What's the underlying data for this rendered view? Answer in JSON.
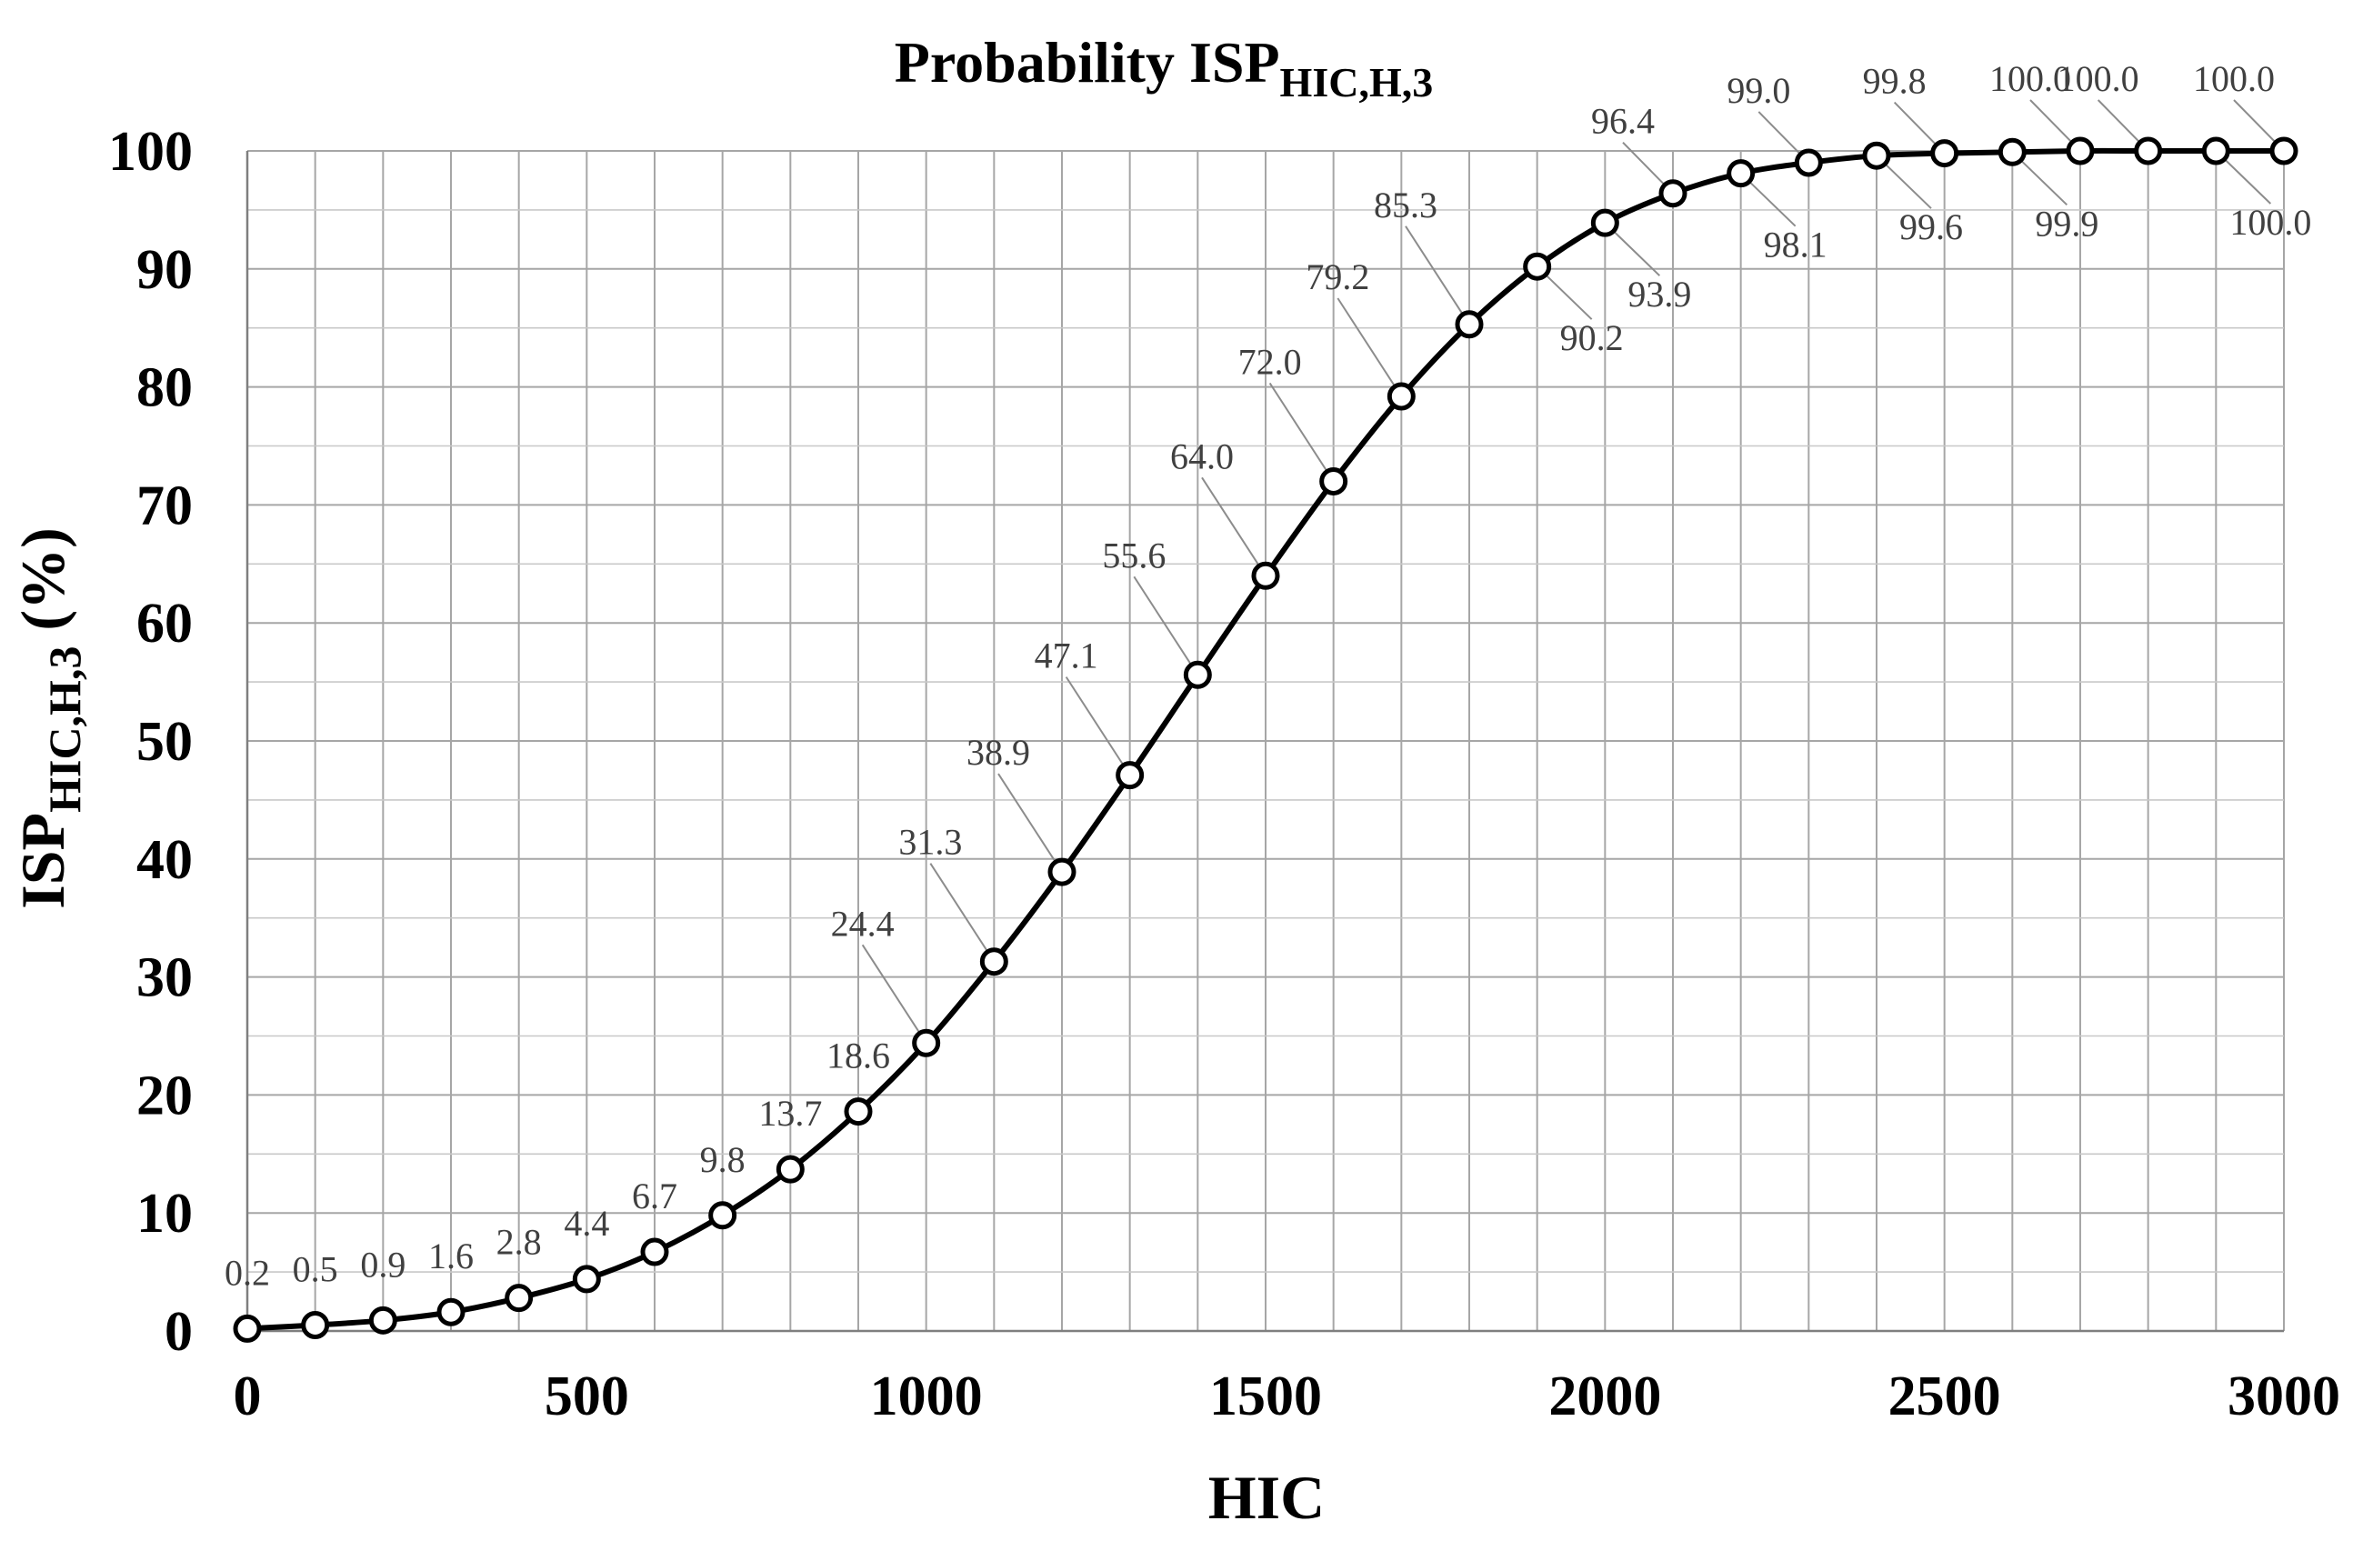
{
  "chart_data": {
    "type": "line",
    "title": {
      "main": "Probability ISP",
      "subscript": "HIC,H,3"
    },
    "xlabel": "HIC",
    "ylabel": {
      "main": "ISP",
      "subscript": "HIC,H,3",
      "unit": " (%)"
    },
    "xlim": [
      0,
      3000
    ],
    "ylim": [
      0,
      100
    ],
    "x_major_ticks": [
      0,
      500,
      1000,
      1500,
      2000,
      2500,
      3000
    ],
    "x_tick_labels": [
      "0",
      "500",
      "1000",
      "1500",
      "2000",
      "2500",
      "3000"
    ],
    "y_major_ticks": [
      0,
      10,
      20,
      30,
      40,
      50,
      60,
      70,
      80,
      90,
      100
    ],
    "y_tick_labels": [
      "0",
      "10",
      "20",
      "30",
      "40",
      "50",
      "60",
      "70",
      "80",
      "90",
      "100"
    ],
    "x_grid_step": 100,
    "y_grid_step": 5,
    "grid": true,
    "series": [
      {
        "name": "ISP HIC,H,3",
        "x": [
          0,
          100,
          200,
          300,
          400,
          500,
          600,
          700,
          800,
          900,
          1000,
          1100,
          1200,
          1300,
          1400,
          1500,
          1600,
          1700,
          1800,
          1900,
          2000,
          2100,
          2200,
          2300,
          2400,
          2500,
          2600,
          2700,
          2800,
          2900,
          3000
        ],
        "values": [
          0.2,
          0.5,
          0.9,
          1.6,
          2.8,
          4.4,
          6.7,
          9.8,
          13.7,
          18.6,
          24.4,
          31.3,
          38.9,
          47.1,
          55.6,
          64.0,
          72.0,
          79.2,
          85.3,
          90.2,
          93.9,
          96.4,
          98.1,
          99.0,
          99.6,
          99.8,
          99.9,
          100.0,
          100.0,
          100.0,
          100.0
        ],
        "labels": [
          "0.2",
          "0.5",
          "0.9",
          "1.6",
          "2.8",
          "4.4",
          "6.7",
          "9.8",
          "13.7",
          "18.6",
          "24.4",
          "31.3",
          "38.9",
          "47.1",
          "55.6",
          "64.0",
          "72.0",
          "79.2",
          "85.3",
          "90.2",
          "93.9",
          "96.4",
          "98.1",
          "99.0",
          "99.6",
          "99.8",
          "99.9",
          "100.0",
          "100.0",
          "100.0",
          "100.0"
        ],
        "label_placement": [
          "above",
          "above",
          "above",
          "above",
          "above",
          "above",
          "above",
          "above",
          "above",
          "above",
          "above",
          "above",
          "above",
          "above",
          "above",
          "above",
          "above",
          "above",
          "above",
          "below",
          "below",
          "above",
          "below",
          "above",
          "below",
          "above",
          "below",
          "above",
          "above",
          "below",
          "above"
        ]
      }
    ],
    "line_color": "#000000",
    "marker_fill": "#ffffff",
    "grid_color": "#a6a6a6",
    "label_color": "#404040"
  }
}
